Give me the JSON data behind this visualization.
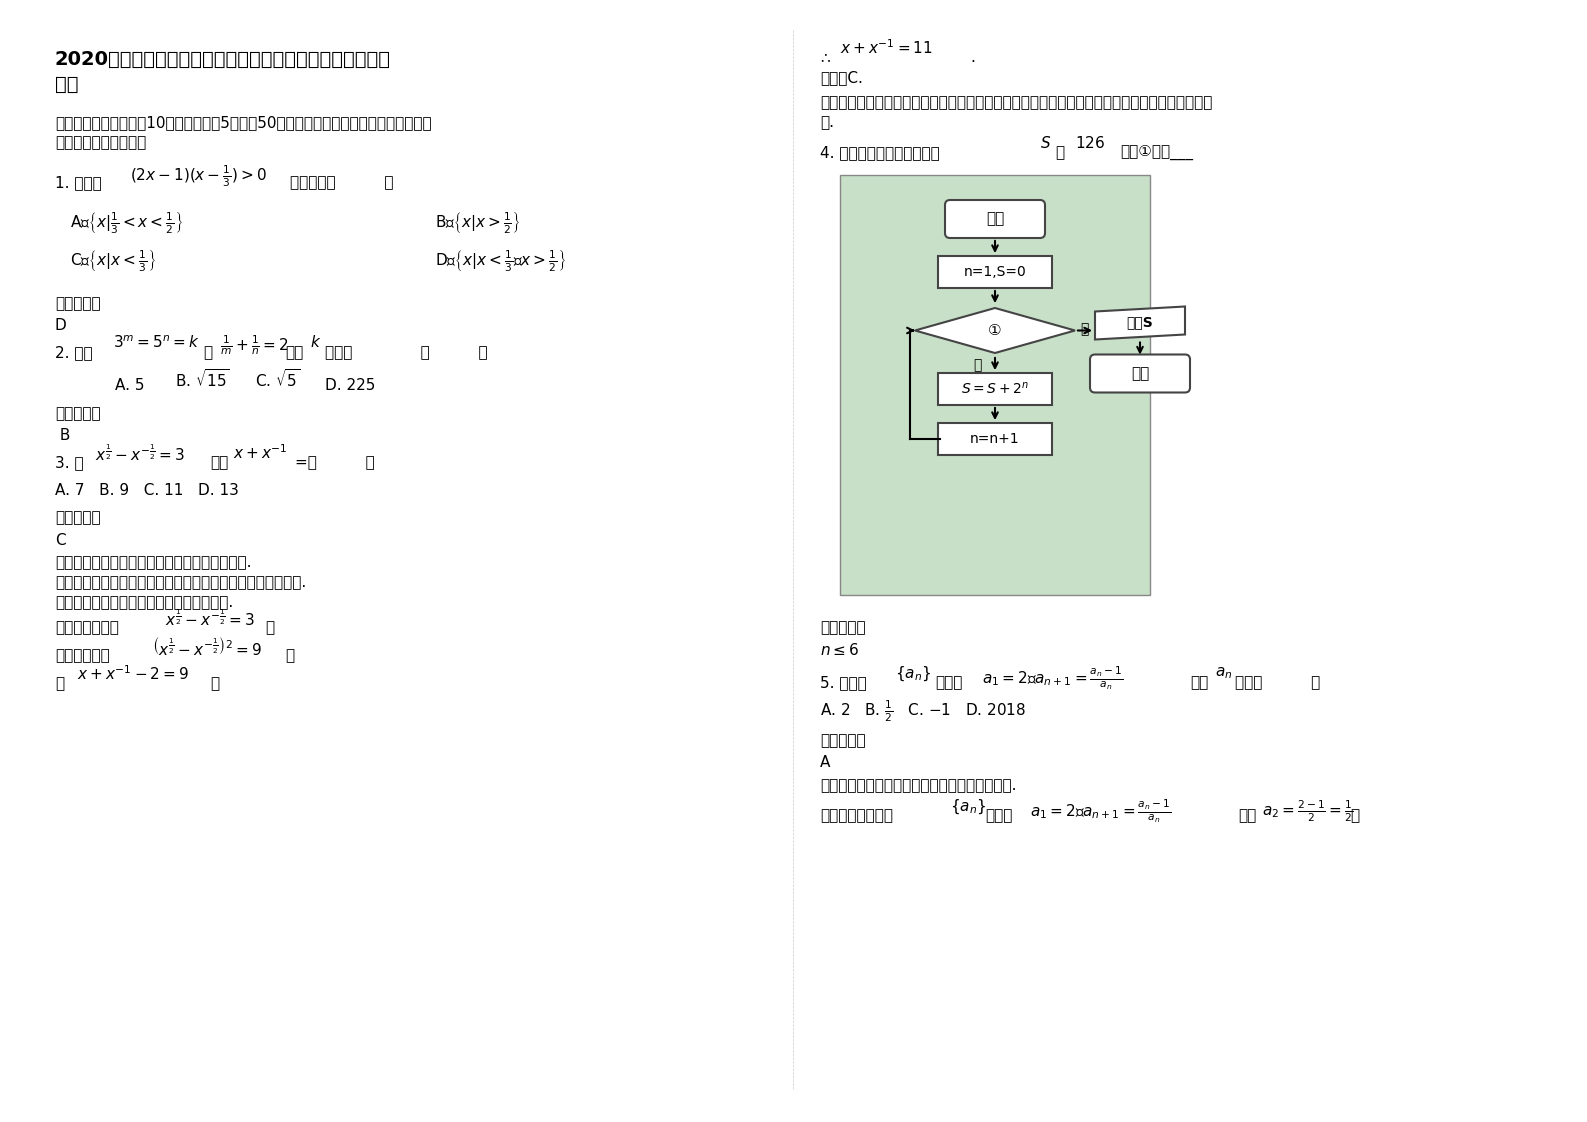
{
  "bg_color": "#ffffff",
  "title_line1": "2020年湖北省宜昌市县职业高级中学高一数学理月考试题含",
  "title_line2": "解析",
  "section1": "一、选择题：本大题共10小题，每小题5分，共50分。在每小题给出的四个选项中，只有",
  "section1b": "是一个符合题目要求的",
  "q1_label": "1. 不等式",
  "q1_formula": "$(2x-1)(x-\\frac{1}{3})>0$",
  "q1_suffix": "的解集为（          ）",
  "q1_A": "A、$\\left\\{x|\\frac{1}{3}<x<\\frac{1}{2}\\right\\}$",
  "q1_B": "B、$\\left\\{x|x>\\frac{1}{2}\\right\\}$",
  "q1_C": "C、$\\left\\{x|x<\\frac{1}{3}\\right\\}$",
  "q1_D": "D、$\\left\\{x|x<\\frac{1}{3}或x>\\frac{1}{2}\\right\\}$",
  "q1_ans_label": "参考答案：",
  "q1_ans": "D",
  "q2_label": "2. 已知$3^m=5^n=k$且$\\frac{1}{m}+\\frac{1}{n}=2$，则$k$的值为          （          ）",
  "q2_A": "A. 5",
  "q2_B": "B. $\\sqrt{15}$",
  "q2_C": "C. $\\sqrt{5}$",
  "q2_D": "D. 225",
  "q2_ans_label": "参考答案：",
  "q2_ans": " B",
  "q3_label": "3. 若$x^{\\frac{1}{2}}-x^{-\\frac{1}{2}}=3$，则$x+x^{-1}=$（          ）",
  "q3_A": "A. 7   B. 9   C. 11   D. 13",
  "q3_ans_label": "参考答案：",
  "q3_ans": "C",
  "q3_note1": "【考点】根式与分数指数幂的互化及其化简运算.",
  "q3_note2": "【专题】计算题；方程思想；数学模型法；函数的性质及应用.",
  "q3_note3": "【分析】把已知等式两边平方即可求得答案.",
  "q3_sol1": "【解答】解：由$x^{\\frac{1}{2}}-x^{-\\frac{1}{2}}=3$，",
  "q3_sol2": "两边平方得：$\\left(x^{\\frac{1}{2}}-x^{-\\frac{1}{2}}\\right)^2=9$，",
  "q3_sol3": "即$x+x^{-1}-2=9$，",
  "right_top1": "∴$x+x^{-1}=11$.",
  "right_top2": "故选：C.",
  "right_note": "【点评】本题考查根式与分数指数幂的互化及运算，能够想到把已知等式两边平方是关键，是基础",
  "right_noteb": "题.",
  "q4_label": "4. 若右面的程序框图输出的$S$是$126$，则①应为___",
  "q4_ans_label": "参考答案：",
  "q4_ans": "$n\\leq 6$",
  "q5_label": "5. 若数列$\\{a_n\\}$满足：$a_1=2$，$a_{n+1}=\\frac{a_n-1}{a_n}$，则$a_n$等于（          ）",
  "q5_A": "A. 2   B. $\\frac{1}{2}$   C. −1   D. 2018",
  "q5_ans_label": "参考答案：",
  "q5_ans": "A",
  "q5_note": "【分析】利用数列的递推关系式，逐步求解即可.",
  "q5_sol": "【解答】解：数列$\\{a_n\\}$满足：$a_1=2$，$a_{n+1}=\\frac{a_n-1}{a_n}$，则$a_2=\\frac{2-1}{2}=\\frac{1}{2}$，",
  "flowchart_bg": "#c8dfc8",
  "flowchart_box_color": "#ffffff",
  "flowchart_border": "#666666"
}
